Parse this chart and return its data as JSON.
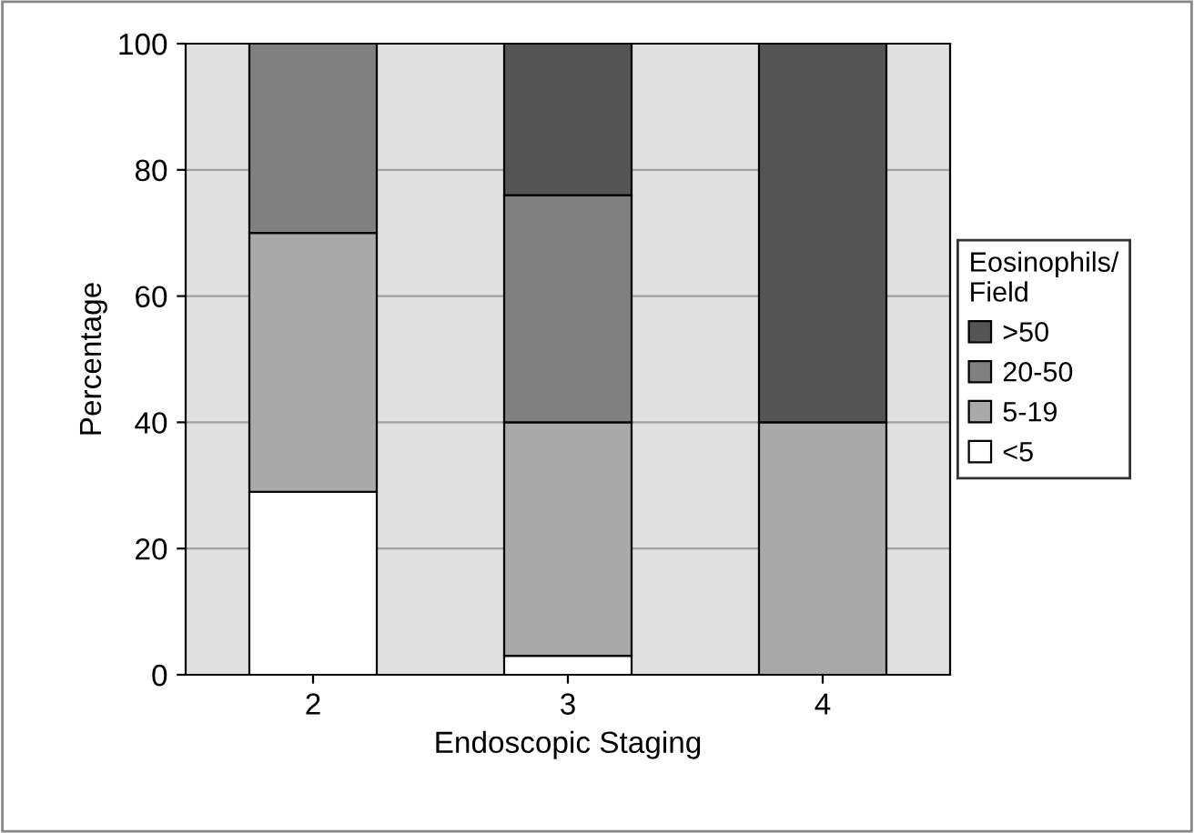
{
  "chart_data": {
    "type": "bar",
    "stacked": true,
    "xlabel": "Endoscopic Staging",
    "ylabel": "Percentage",
    "categories": [
      "2",
      "3",
      "4"
    ],
    "series": [
      {
        "name": "<5",
        "color": "#ffffff",
        "values": [
          29,
          3,
          null
        ]
      },
      {
        "name": "5-19",
        "color": "#a9a9a9",
        "values": [
          41,
          37,
          40
        ]
      },
      {
        "name": "20-50",
        "color": "#808080",
        "values": [
          30,
          36,
          null
        ]
      },
      {
        "name": ">50",
        "color": "#555555",
        "values": [
          null,
          24,
          60
        ]
      }
    ],
    "ylim": [
      0,
      100
    ],
    "yticks": [
      0,
      20,
      40,
      60,
      80,
      100
    ],
    "grid": "y",
    "legend": "right",
    "legend_title": "Eosinophils/\nField"
  }
}
